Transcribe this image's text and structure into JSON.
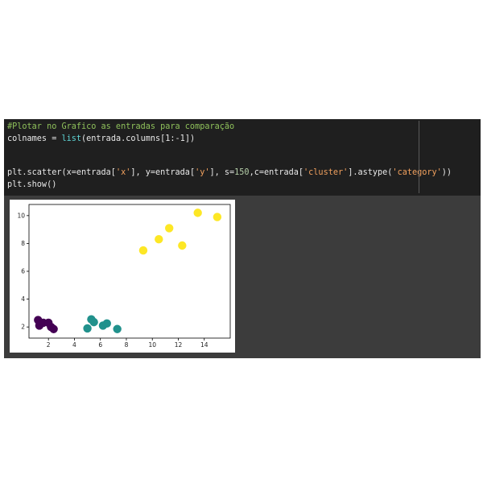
{
  "code": {
    "comment": "#Plotar no Grafico as entradas para comparação",
    "line2": {
      "prefix": "colnames = ",
      "builtin": "list",
      "suffix": "(entrada.columns[1:-1])"
    },
    "line3": {
      "p1": "plt.scatter(x=entrada[",
      "s1": "'x'",
      "p2": "], y=entrada[",
      "s2": "'y'",
      "p3": "], s=",
      "n1": "150",
      "p4": ",c=entrada[",
      "s3": "'cluster'",
      "p5": "].astype(",
      "s4": "'category'",
      "p6": "))"
    },
    "line4": "plt.show()"
  },
  "chart_data": {
    "type": "scatter",
    "xlim": [
      0.5,
      16
    ],
    "ylim": [
      1.2,
      10.8
    ],
    "x_ticks": [
      2,
      4,
      6,
      8,
      10,
      12,
      14
    ],
    "y_ticks": [
      2,
      4,
      6,
      8,
      10
    ],
    "grid": false,
    "colors": {
      "cluster_0": "#440154",
      "cluster_1": "#21918c",
      "cluster_2": "#fde725"
    },
    "points": [
      {
        "x": 1.2,
        "y": 2.5,
        "cluster": "cluster_0"
      },
      {
        "x": 1.3,
        "y": 2.1,
        "cluster": "cluster_0"
      },
      {
        "x": 1.6,
        "y": 2.3,
        "cluster": "cluster_0"
      },
      {
        "x": 2.0,
        "y": 2.3,
        "cluster": "cluster_0"
      },
      {
        "x": 2.2,
        "y": 2.0,
        "cluster": "cluster_0"
      },
      {
        "x": 2.4,
        "y": 1.85,
        "cluster": "cluster_0"
      },
      {
        "x": 5.0,
        "y": 1.9,
        "cluster": "cluster_1"
      },
      {
        "x": 5.3,
        "y": 2.55,
        "cluster": "cluster_1"
      },
      {
        "x": 5.5,
        "y": 2.35,
        "cluster": "cluster_1"
      },
      {
        "x": 6.2,
        "y": 2.1,
        "cluster": "cluster_1"
      },
      {
        "x": 6.5,
        "y": 2.25,
        "cluster": "cluster_1"
      },
      {
        "x": 7.3,
        "y": 1.85,
        "cluster": "cluster_1"
      },
      {
        "x": 9.3,
        "y": 7.5,
        "cluster": "cluster_2"
      },
      {
        "x": 10.5,
        "y": 8.3,
        "cluster": "cluster_2"
      },
      {
        "x": 11.3,
        "y": 9.1,
        "cluster": "cluster_2"
      },
      {
        "x": 12.3,
        "y": 7.85,
        "cluster": "cluster_2"
      },
      {
        "x": 13.5,
        "y": 10.2,
        "cluster": "cluster_2"
      },
      {
        "x": 15.0,
        "y": 9.9,
        "cluster": "cluster_2"
      }
    ]
  }
}
